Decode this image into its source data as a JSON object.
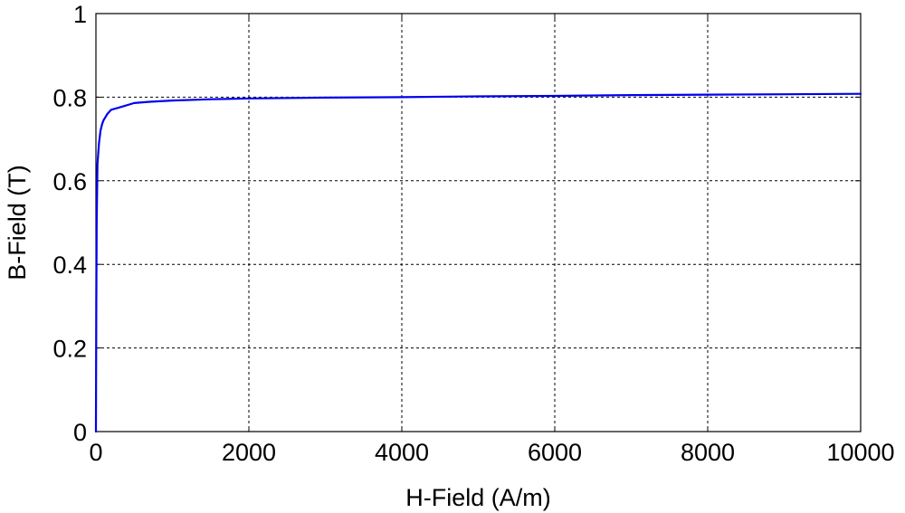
{
  "chart_data": {
    "type": "line",
    "title": "",
    "xlabel": "H-Field (A/m)",
    "ylabel": "B-Field (T)",
    "xlim": [
      0,
      10000
    ],
    "ylim": [
      0,
      1
    ],
    "xticks": [
      0,
      2000,
      4000,
      6000,
      8000,
      10000
    ],
    "xtick_labels": [
      "0",
      "2000",
      "4000",
      "6000",
      "8000",
      "10000"
    ],
    "yticks": [
      0,
      0.2,
      0.4,
      0.6,
      0.8,
      1
    ],
    "ytick_labels": [
      "0",
      "0.2",
      "0.4",
      "0.6",
      "0.8",
      "1"
    ],
    "grid": true,
    "legend": "none",
    "series": [
      {
        "color": "#0000ee",
        "x": [
          0,
          5,
          10,
          20,
          40,
          60,
          80,
          100,
          150,
          200,
          300,
          500,
          700,
          1000,
          1500,
          2000,
          3000,
          4000,
          5000,
          6000,
          7000,
          8000,
          9000,
          10000
        ],
        "y": [
          0,
          0.3,
          0.5,
          0.64,
          0.69,
          0.72,
          0.735,
          0.745,
          0.76,
          0.77,
          0.775,
          0.786,
          0.789,
          0.792,
          0.795,
          0.797,
          0.799,
          0.8,
          0.802,
          0.803,
          0.805,
          0.806,
          0.807,
          0.808
        ]
      }
    ]
  }
}
